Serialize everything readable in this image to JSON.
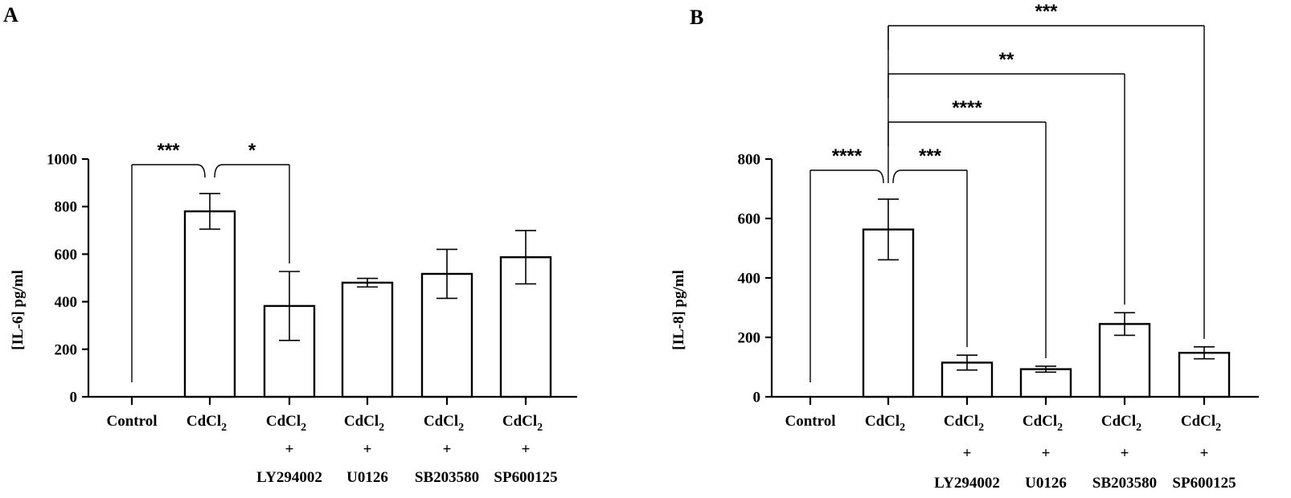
{
  "chart_data": [
    {
      "panel": "A",
      "type": "bar",
      "ylabel": "[IL-6] pg/ml",
      "xlabel": "",
      "ylim": [
        0,
        1000
      ],
      "yticks": [
        0,
        200,
        400,
        600,
        800,
        1000
      ],
      "categories": [
        [
          "Control"
        ],
        [
          "CdCl",
          "2"
        ],
        [
          "CdCl",
          "2",
          "+",
          "LY294002"
        ],
        [
          "CdCl",
          "2",
          "+",
          "U0126"
        ],
        [
          "CdCl",
          "2",
          "+",
          "SB203580"
        ],
        [
          "CdCl",
          "2",
          "+",
          "SP600125"
        ]
      ],
      "values": [
        0,
        780,
        382,
        480,
        517,
        587
      ],
      "errors": [
        0,
        75,
        145,
        18,
        103,
        112
      ],
      "comparisons": [
        {
          "from": 1,
          "to": 0,
          "label": "***"
        },
        {
          "from": 1,
          "to": 2,
          "label": "*"
        }
      ]
    },
    {
      "panel": "B",
      "type": "bar",
      "ylabel": "[IL-8] pg/ml",
      "xlabel": "",
      "ylim": [
        0,
        800
      ],
      "yticks": [
        0,
        200,
        400,
        600,
        800
      ],
      "categories": [
        [
          "Control"
        ],
        [
          "CdCl",
          "2"
        ],
        [
          "CdCl",
          "2",
          "+",
          "LY294002"
        ],
        [
          "CdCl",
          "2",
          "+",
          "U0126"
        ],
        [
          "CdCl",
          "2",
          "+",
          "SB203580"
        ],
        [
          "CdCl",
          "2",
          "+",
          "SP600125"
        ]
      ],
      "values": [
        0,
        563,
        115,
        93,
        245,
        148
      ],
      "errors": [
        0,
        102,
        25,
        10,
        38,
        20
      ],
      "comparisons": [
        {
          "from": 1,
          "to": 0,
          "label": "****"
        },
        {
          "from": 1,
          "to": 2,
          "label": "***"
        },
        {
          "from": 1,
          "to": 3,
          "label": "****"
        },
        {
          "from": 1,
          "to": 4,
          "label": "**"
        },
        {
          "from": 1,
          "to": 5,
          "label": "***"
        }
      ]
    }
  ]
}
